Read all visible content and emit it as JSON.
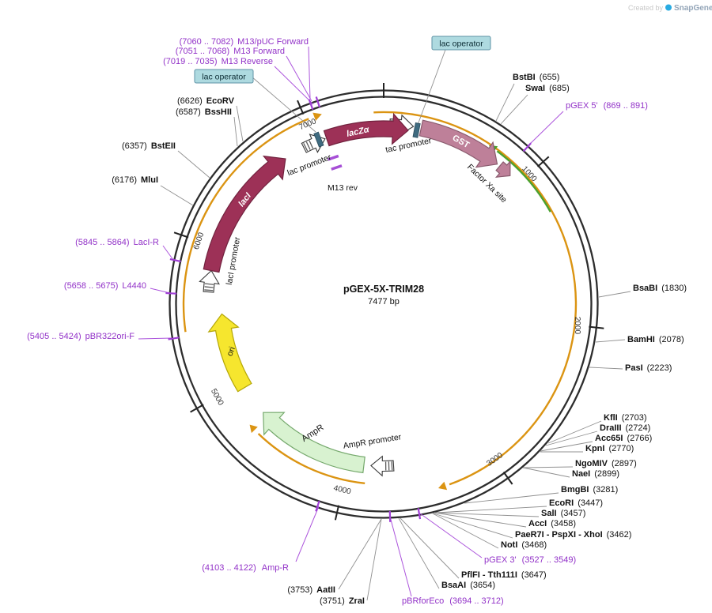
{
  "watermark": {
    "created_by": "Created by",
    "brand": "SnapGene"
  },
  "plasmid": {
    "name": "pGEX-5X-TRIM28",
    "size": "7477 bp"
  },
  "tick_labels": [
    "1000",
    "2000",
    "3000",
    "4000",
    "5000",
    "6000",
    "7000"
  ],
  "features": {
    "laczalpha": "lacZα",
    "lac_promoter": "lac promoter",
    "m13_rev": "M13 rev",
    "tac_promoter": "tac promoter",
    "gst": "GST",
    "factor_xa": "Factor Xa site",
    "laci": "lacI",
    "laci_promoter": "lacI promoter",
    "ori": "ori",
    "ampr": "AmpR",
    "ampr_promoter": "AmpR promoter",
    "lac_operator_top": "lac operator",
    "lac_operator_left": "lac operator"
  },
  "sites_left": [
    {
      "pos": "(6626)",
      "name": "EcoRV"
    },
    {
      "pos": "(6587)",
      "name": "BssHII"
    },
    {
      "pos": "(6357)",
      "name": "BstEII"
    },
    {
      "pos": "(6176)",
      "name": "MluI"
    }
  ],
  "sites_right": [
    {
      "name": "BstBI",
      "pos": "(655)"
    },
    {
      "name": "SwaI",
      "pos": "(685)"
    },
    {
      "name": "BsaBI",
      "pos": "(1830)"
    },
    {
      "name": "BamHI",
      "pos": "(2078)"
    },
    {
      "name": "PasI",
      "pos": "(2223)"
    },
    {
      "name": "KflI",
      "pos": "(2703)"
    },
    {
      "name": "DraIII",
      "pos": "(2724)"
    },
    {
      "name": "Acc65I",
      "pos": "(2766)"
    },
    {
      "name": "KpnI",
      "pos": "(2770)"
    },
    {
      "name": "NgoMIV",
      "pos": "(2897)"
    },
    {
      "name": "NaeI",
      "pos": "(2899)"
    },
    {
      "name": "BmgBI",
      "pos": "(3281)"
    },
    {
      "name": "EcoRI",
      "pos": "(3447)"
    },
    {
      "name": "SalI",
      "pos": "(3457)"
    },
    {
      "name": "AccI",
      "pos": "(3458)"
    },
    {
      "name": "PaeR7I - PspXI - XhoI",
      "pos": "(3462)"
    },
    {
      "name": "NotI",
      "pos": "(3468)"
    },
    {
      "name": "PflFI - Tth111I",
      "pos": "(3647)"
    },
    {
      "name": "BsaAI",
      "pos": "(3654)"
    }
  ],
  "sites_bottom": [
    {
      "pos": "(3753)",
      "name": "AatII"
    },
    {
      "pos": "(3751)",
      "name": "ZraI"
    }
  ],
  "primers": {
    "m13_puc_fwd": {
      "pos": "(7060 .. 7082)",
      "name": "M13/pUC Forward"
    },
    "m13_fwd": {
      "pos": "(7051 .. 7068)",
      "name": "M13 Forward"
    },
    "m13_rev": {
      "pos": "(7019 .. 7035)",
      "name": "M13 Reverse"
    },
    "pgex5": {
      "name": "pGEX 5'",
      "pos": "(869 .. 891)"
    },
    "pgex3": {
      "name": "pGEX 3'",
      "pos": "(3527 .. 3549)"
    },
    "laci_r": {
      "pos": "(5845 .. 5864)",
      "name": "LacI-R"
    },
    "l4440": {
      "pos": "(5658 .. 5675)",
      "name": "L4440"
    },
    "pbr322ori_f": {
      "pos": "(5405 .. 5424)",
      "name": "pBR322ori-F"
    },
    "amp_r": {
      "pos": "(4103 .. 4122)",
      "name": "Amp-R"
    },
    "pbrforeco": {
      "name": "pBRforEco",
      "pos": "(3694 .. 3712)"
    }
  }
}
